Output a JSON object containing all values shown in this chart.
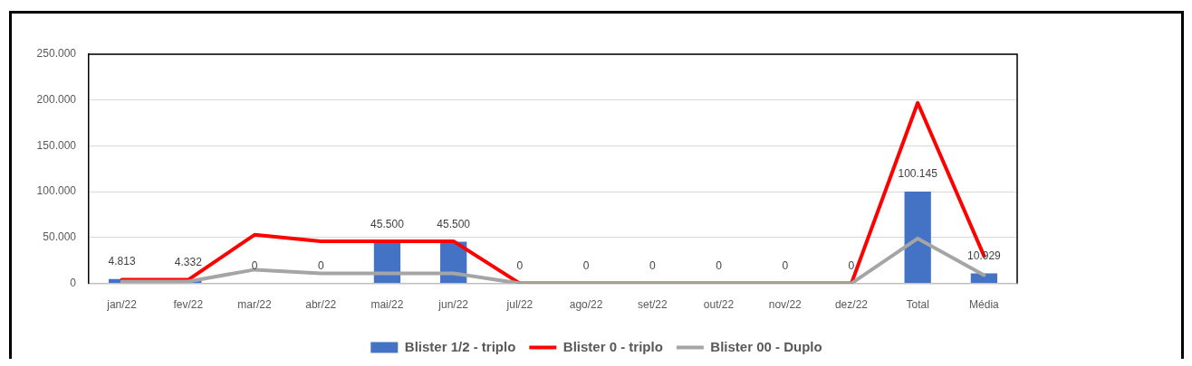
{
  "chart_data": {
    "type": "bar",
    "categories": [
      "jan/22",
      "fev/22",
      "mar/22",
      "abr/22",
      "mai/22",
      "jun/22",
      "jul/22",
      "ago/22",
      "set/22",
      "out/22",
      "nov/22",
      "dez/22",
      "Total",
      "Média"
    ],
    "ylim": [
      0,
      250000
    ],
    "yticks": [
      0,
      {
        "value": 50000,
        "label": "50.000"
      },
      {
        "value": 100000,
        "label": "100.000"
      },
      {
        "value": 150000,
        "label": "150.000"
      },
      {
        "value": 200000,
        "label": "200.000"
      },
      {
        "value": 250000,
        "label": "250.000"
      }
    ],
    "grid": "y",
    "legend": "bottom",
    "marker": "none",
    "series": [
      {
        "name": "Blister 1/2 - triplo",
        "color": "#4472c4",
        "values": [
          4813,
          4332,
          0,
          0,
          45500,
          45500,
          0,
          0,
          0,
          0,
          0,
          0,
          100145,
          10929
        ],
        "value_labels": [
          "4.813",
          "4.332",
          "0",
          "0",
          "45.500",
          "45.500",
          "0",
          "0",
          "0",
          "0",
          "0",
          "0",
          "100.145",
          "10.929"
        ]
      },
      {
        "name": "Blister 0 - triplo",
        "type": "line",
        "color": "#ff0000",
        "values": [
          4000,
          4000,
          53000,
          46000,
          46000,
          46000,
          0,
          0,
          0,
          0,
          0,
          0,
          197000,
          30000
        ]
      },
      {
        "name": "Blister 00 - Duplo",
        "type": "line",
        "color": "#a5a5a5",
        "values": [
          2000,
          2000,
          15000,
          11000,
          11000,
          11000,
          0,
          0,
          0,
          0,
          0,
          0,
          49000,
          9000
        ]
      }
    ]
  }
}
